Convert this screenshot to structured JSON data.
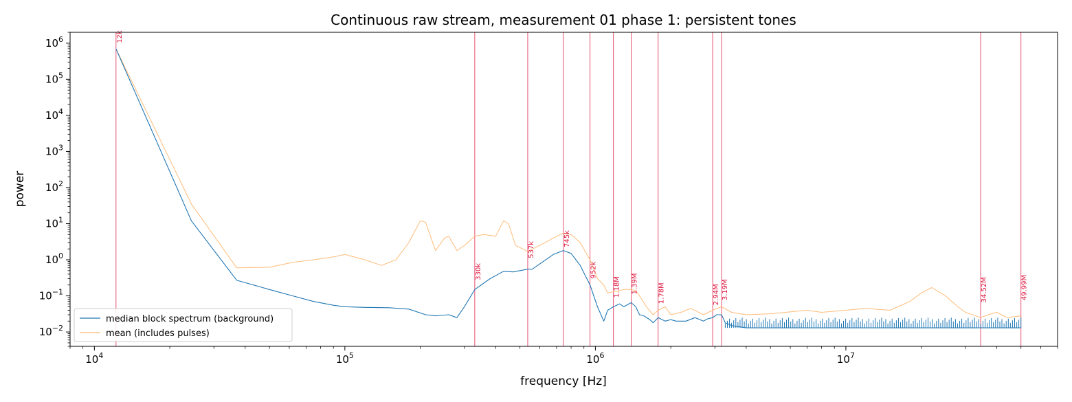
{
  "chart_data": {
    "type": "line",
    "title": "Continuous raw stream, measurement 01 phase 1: persistent tones",
    "xlabel": "frequency [Hz]",
    "ylabel": "power",
    "x_scale": "log",
    "y_scale": "log",
    "xlim": [
      8000,
      70000000
    ],
    "ylim": [
      0.004,
      2000000
    ],
    "x_ticks": [
      {
        "value": 10000,
        "base": "10",
        "exp": "4"
      },
      {
        "value": 100000,
        "base": "10",
        "exp": "5"
      },
      {
        "value": 1000000,
        "base": "10",
        "exp": "6"
      },
      {
        "value": 10000000,
        "base": "10",
        "exp": "7"
      }
    ],
    "y_ticks": [
      {
        "value": 0.01,
        "base": "10",
        "exp": "−2"
      },
      {
        "value": 0.1,
        "base": "10",
        "exp": "−1"
      },
      {
        "value": 1,
        "base": "10",
        "exp": "0"
      },
      {
        "value": 10,
        "base": "10",
        "exp": "1"
      },
      {
        "value": 100,
        "base": "10",
        "exp": "2"
      },
      {
        "value": 1000,
        "base": "10",
        "exp": "3"
      },
      {
        "value": 10000,
        "base": "10",
        "exp": "4"
      },
      {
        "value": 100000,
        "base": "10",
        "exp": "5"
      },
      {
        "value": 1000000,
        "base": "10",
        "exp": "6"
      }
    ],
    "grid": false,
    "legend_position": "lower-left",
    "series": [
      {
        "name": "median block spectrum (background)",
        "color": "#1f77b4",
        "x": [
          12200,
          24400,
          37000,
          50000,
          62000,
          75000,
          90000,
          100000,
          120000,
          150000,
          180000,
          210000,
          230000,
          260000,
          280000,
          300000,
          330000,
          380000,
          430000,
          470000,
          500000,
          537000,
          560000,
          620000,
          680000,
          745000,
          800000,
          870000,
          952000,
          1020000,
          1080000,
          1120000,
          1180000,
          1250000,
          1300000,
          1390000,
          1450000,
          1500000,
          1560000,
          1650000,
          1700000,
          1780000,
          1900000,
          2000000,
          2100000,
          2300000,
          2500000,
          2700000,
          2800000,
          2940000,
          3050000,
          3190000,
          3300000,
          3500000,
          4000000,
          5000000,
          7000000,
          10000000,
          15000000,
          20000000,
          30000000,
          40000000,
          49990000
        ],
        "y": [
          700000,
          12,
          0.27,
          0.15,
          0.1,
          0.07,
          0.055,
          0.05,
          0.048,
          0.047,
          0.043,
          0.03,
          0.028,
          0.03,
          0.025,
          0.05,
          0.15,
          0.3,
          0.48,
          0.46,
          0.5,
          0.55,
          0.55,
          0.9,
          1.4,
          1.8,
          1.5,
          0.7,
          0.2,
          0.05,
          0.02,
          0.04,
          0.05,
          0.06,
          0.05,
          0.065,
          0.05,
          0.03,
          0.028,
          0.022,
          0.018,
          0.025,
          0.02,
          0.022,
          0.02,
          0.02,
          0.025,
          0.02,
          0.023,
          0.025,
          0.03,
          0.03,
          0.018,
          0.015,
          0.013,
          0.013,
          0.013,
          0.013,
          0.013,
          0.013,
          0.013,
          0.013,
          0.013
        ]
      },
      {
        "name": "mean (includes pulses)",
        "color": "#ffbb78",
        "x": [
          12200,
          24400,
          37000,
          50000,
          62000,
          75000,
          90000,
          100000,
          120000,
          140000,
          160000,
          180000,
          200000,
          210000,
          230000,
          250000,
          260000,
          280000,
          300000,
          330000,
          360000,
          400000,
          430000,
          450000,
          480000,
          537000,
          600000,
          680000,
          745000,
          800000,
          870000,
          952000,
          1020000,
          1080000,
          1120000,
          1180000,
          1250000,
          1300000,
          1390000,
          1450000,
          1500000,
          1600000,
          1700000,
          1780000,
          1900000,
          2000000,
          2200000,
          2400000,
          2700000,
          2940000,
          3190000,
          3500000,
          4000000,
          5000000,
          7000000,
          8000000,
          10000000,
          12000000,
          15000000,
          18000000,
          20000000,
          22000000,
          25000000,
          28000000,
          30000000,
          34520000,
          37000000,
          40000000,
          44000000,
          49990000
        ],
        "y": [
          700000,
          35,
          0.6,
          0.62,
          0.85,
          1,
          1.2,
          1.4,
          1,
          0.7,
          1,
          3,
          12,
          11,
          1.8,
          4,
          4.5,
          1.8,
          2.5,
          4.5,
          5,
          4.5,
          12,
          10,
          2.5,
          1.7,
          2.5,
          4,
          5.5,
          5,
          3,
          1,
          0.3,
          0.2,
          0.12,
          0.13,
          0.14,
          0.15,
          0.15,
          0.14,
          0.1,
          0.05,
          0.03,
          0.04,
          0.05,
          0.03,
          0.035,
          0.045,
          0.03,
          0.04,
          0.05,
          0.035,
          0.03,
          0.032,
          0.04,
          0.035,
          0.04,
          0.045,
          0.04,
          0.07,
          0.12,
          0.17,
          0.1,
          0.05,
          0.035,
          0.025,
          0.03,
          0.035,
          0.025,
          0.028
        ]
      }
    ],
    "markers": [
      {
        "label": "12k",
        "x": 12200
      },
      {
        "label": "330k",
        "x": 330000
      },
      {
        "label": "537k",
        "x": 537000
      },
      {
        "label": "745k",
        "x": 745000
      },
      {
        "label": "952k",
        "x": 952000
      },
      {
        "label": "1.18M",
        "x": 1180000
      },
      {
        "label": "1.39M",
        "x": 1390000
      },
      {
        "label": "1.78M",
        "x": 1780000
      },
      {
        "label": "2.94M",
        "x": 2940000
      },
      {
        "label": "3.19M",
        "x": 3190000
      },
      {
        "label": "34.52M",
        "x": 34520000
      },
      {
        "label": "49.99M",
        "x": 49990000
      }
    ],
    "marker_label_y": [
      1000000,
      0.27,
      1.1,
      2.2,
      0.3,
      0.09,
      0.11,
      0.06,
      0.055,
      0.075,
      0.065,
      0.075
    ],
    "marker_color": "#dc143c",
    "tone_comb": {
      "start": 3300000,
      "end": 49990000,
      "peak": 0.025
    }
  }
}
